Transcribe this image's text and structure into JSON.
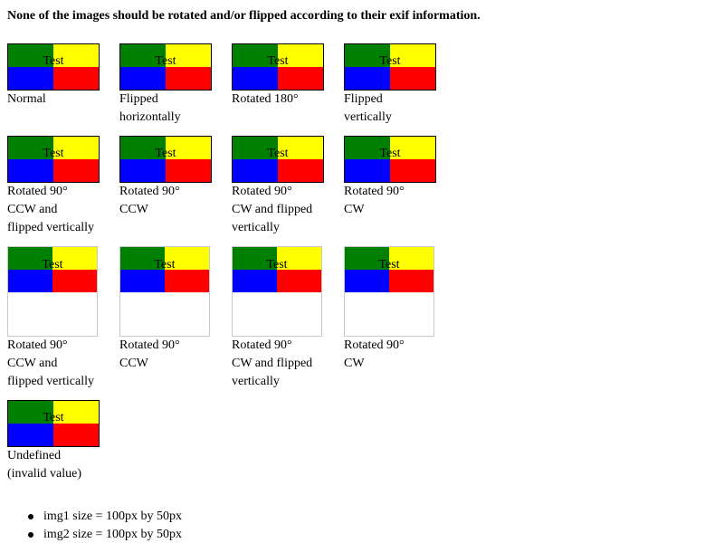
{
  "heading": "None of the images should be rotated and/or flipped according to their exif information.",
  "image_text": "Test",
  "colors": {
    "top_left": "#008000",
    "top_right": "#ffff00",
    "bottom_left": "#0000ff",
    "bottom_right": "#ff0000",
    "frame_border": "#c8c8c8"
  },
  "row1": [
    {
      "caption": "Normal"
    },
    {
      "caption": "Flipped\nhorizontally"
    },
    {
      "caption": "Rotated 180°"
    },
    {
      "caption": "Flipped\nvertically"
    }
  ],
  "row2": [
    {
      "caption": "Rotated 90°\nCCW and\nflipped vertically"
    },
    {
      "caption": "Rotated 90°\nCCW"
    },
    {
      "caption": "Rotated 90°\nCW and flipped\nvertically"
    },
    {
      "caption": "Rotated 90°\nCW"
    }
  ],
  "row3": [
    {
      "caption": "Rotated 90°\nCCW and\nflipped vertically"
    },
    {
      "caption": "Rotated 90°\nCCW"
    },
    {
      "caption": "Rotated 90°\nCW and flipped\nvertically"
    },
    {
      "caption": "Rotated 90°\nCW"
    }
  ],
  "row4": [
    {
      "caption": "Undefined\n(invalid value)"
    }
  ],
  "notes": [
    "img1 size = 100px by 50px",
    "img2 size = 100px by 50px"
  ]
}
